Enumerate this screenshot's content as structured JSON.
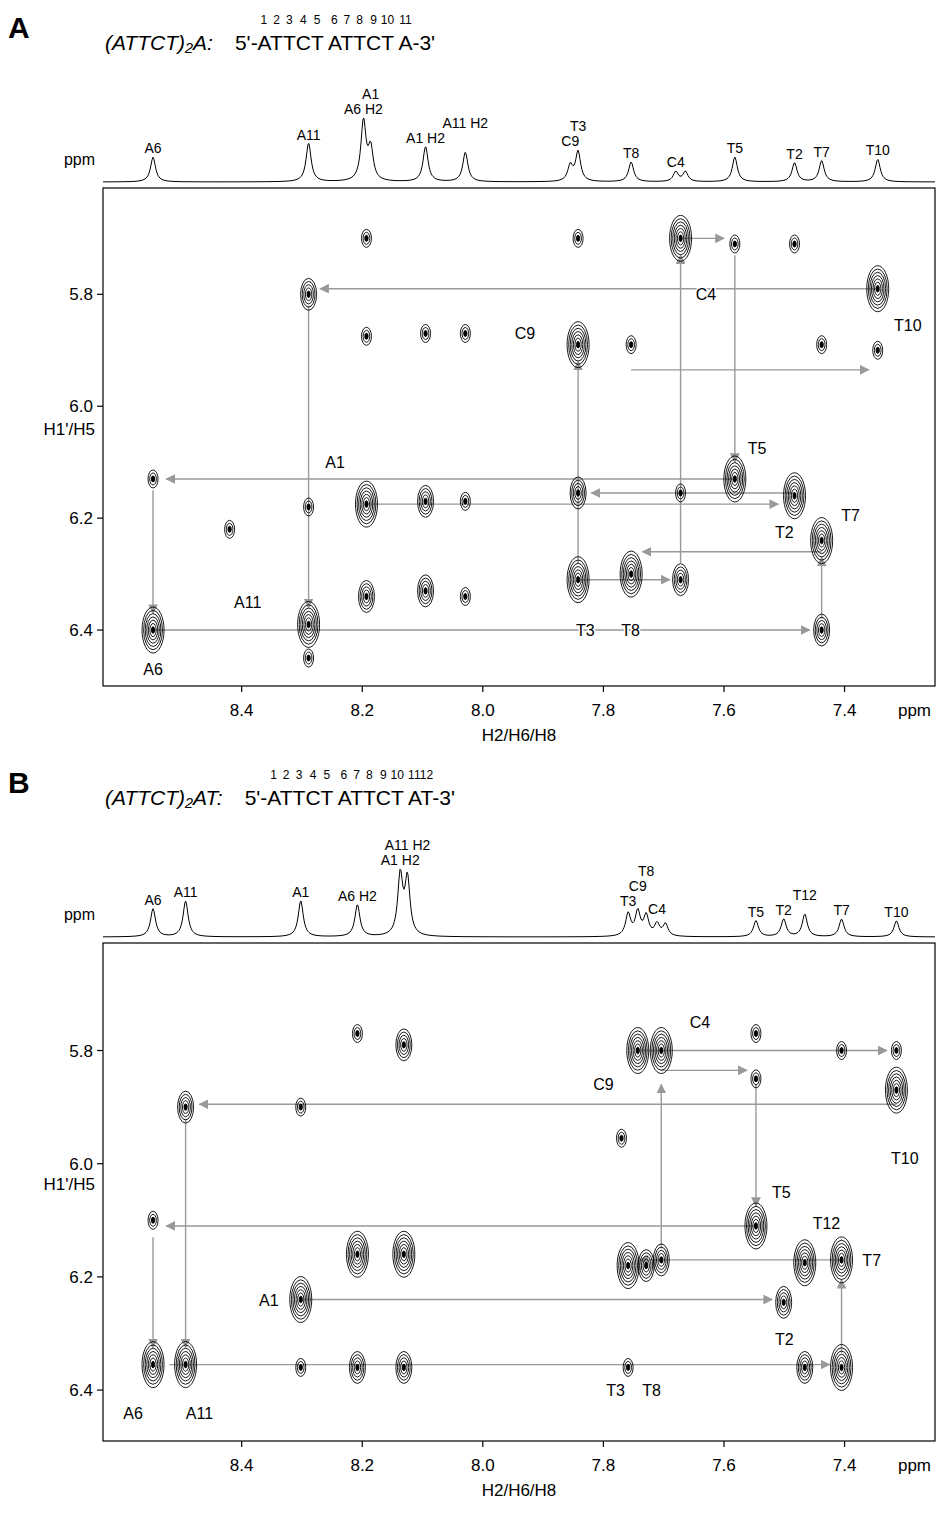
{
  "chart_data": [
    {
      "type": "nmr_2d",
      "panel": "A",
      "title": "(ATTCT)₂A:",
      "sequence": "5'-ATTCT ATTCT A-3'",
      "residue_numbers": [
        1,
        2,
        3,
        4,
        5,
        6,
        7,
        8,
        9,
        10,
        11
      ],
      "x_label": "H2/H6/H8",
      "y_label": "H1'/H5",
      "x_unit": "ppm",
      "y_unit": "ppm",
      "xlim": [
        8.63,
        7.25
      ],
      "ylim": [
        5.61,
        6.5
      ],
      "xticks": [
        8.4,
        8.2,
        {
          "value": 8,
          "label": "8.0"
        },
        7.8,
        7.6,
        7.4
      ],
      "yticks": [
        5.8,
        {
          "value": 6,
          "label": "6.0"
        },
        6.2,
        6.4
      ],
      "spectrum": {
        "x": [
          8.547,
          8.289,
          8.198,
          8.186,
          8.095,
          8.029,
          7.855,
          7.842,
          7.754,
          7.68,
          7.664,
          7.582,
          7.483,
          7.438,
          7.345
        ],
        "height": [
          0.35,
          0.55,
          0.85,
          0.45,
          0.5,
          0.42,
          0.22,
          0.42,
          0.28,
          0.14,
          0.14,
          0.35,
          0.27,
          0.3,
          0.32
        ],
        "labels": [
          "A6",
          "A11",
          "A6 H2",
          "A1",
          "A1 H2",
          "A11 H2",
          "C9",
          "T3",
          "T8",
          "C4",
          null,
          "T5",
          "T2",
          "T7",
          "T10"
        ]
      },
      "peaks": {
        "x": [
          8.547,
          8.547,
          8.289,
          8.289,
          8.289,
          8.289,
          8.42,
          8.193,
          8.193,
          8.193,
          8.193,
          8.095,
          8.095,
          8.095,
          8.029,
          8.029,
          8.029,
          7.842,
          7.842,
          7.842,
          7.842,
          7.754,
          7.754,
          7.672,
          7.672,
          7.672,
          7.582,
          7.582,
          7.483,
          7.483,
          7.438,
          7.438,
          7.438,
          7.345,
          7.345
        ],
        "y": [
          6.13,
          6.4,
          5.8,
          6.18,
          6.39,
          6.45,
          6.22,
          5.7,
          5.875,
          6.175,
          6.34,
          5.87,
          6.17,
          6.33,
          5.87,
          6.17,
          6.34,
          5.7,
          5.89,
          6.155,
          6.31,
          5.89,
          6.3,
          5.7,
          6.155,
          6.31,
          5.71,
          6.13,
          5.71,
          6.16,
          5.89,
          6.24,
          6.4,
          5.79,
          5.9
        ],
        "intensity": [
          1,
          3,
          2,
          1,
          3,
          1,
          1,
          1,
          1,
          3,
          2,
          1,
          2,
          2,
          1,
          1,
          1,
          1,
          3,
          2,
          3,
          1,
          3,
          3,
          1,
          2,
          1,
          3,
          1,
          3,
          1,
          3,
          2,
          3,
          1
        ]
      },
      "annotations": [
        {
          "text": "A6",
          "x": 8.547,
          "y": 6.47
        },
        {
          "text": "A11",
          "x": 8.39,
          "y": 6.35
        },
        {
          "text": "A1",
          "x": 8.245,
          "y": 6.1
        },
        {
          "text": "C9",
          "x": 7.93,
          "y": 5.87
        },
        {
          "text": "T3",
          "x": 7.83,
          "y": 6.4
        },
        {
          "text": "T8",
          "x": 7.755,
          "y": 6.4
        },
        {
          "text": "C4",
          "x": 7.63,
          "y": 5.8
        },
        {
          "text": "T5",
          "x": 7.545,
          "y": 6.075
        },
        {
          "text": "T2",
          "x": 7.5,
          "y": 6.225
        },
        {
          "text": "T7",
          "x": 7.39,
          "y": 6.195
        },
        {
          "text": "T10",
          "x": 7.295,
          "y": 5.855
        }
      ],
      "connections": [
        [
          7.483,
          6.155,
          7.82,
          6.155
        ],
        [
          8.193,
          6.175,
          7.51,
          6.175
        ],
        [
          7.842,
          6.31,
          7.69,
          6.31
        ],
        [
          7.672,
          6.28,
          7.672,
          5.73
        ],
        [
          7.672,
          5.7,
          7.6,
          5.7
        ],
        [
          7.582,
          5.73,
          7.582,
          6.1
        ],
        [
          7.582,
          6.13,
          8.525,
          6.13
        ],
        [
          8.547,
          6.15,
          8.547,
          6.37
        ],
        [
          8.547,
          6.4,
          7.458,
          6.4
        ],
        [
          7.438,
          6.38,
          7.438,
          6.27
        ],
        [
          7.438,
          6.26,
          7.735,
          6.26
        ],
        [
          7.842,
          6.28,
          7.842,
          5.92
        ],
        [
          7.754,
          5.935,
          7.36,
          5.935
        ],
        [
          7.345,
          5.79,
          8.27,
          5.79
        ],
        [
          8.289,
          5.82,
          8.289,
          6.36
        ]
      ]
    },
    {
      "type": "nmr_2d",
      "panel": "B",
      "title": "(ATTCT)₂AT:",
      "sequence": "5'-ATTCT ATTCT AT-3'",
      "residue_numbers": [
        1,
        2,
        3,
        4,
        5,
        6,
        7,
        8,
        9,
        10,
        11,
        12
      ],
      "x_label": "H2/H6/H8",
      "y_label": "H1'/H5",
      "x_unit": "ppm",
      "y_unit": "ppm",
      "xlim": [
        8.63,
        7.25
      ],
      "ylim": [
        5.61,
        6.49
      ],
      "xticks": [
        8.4,
        8.2,
        {
          "value": 8,
          "label": "8.0"
        },
        7.8,
        7.6,
        7.4
      ],
      "yticks": [
        5.8,
        {
          "value": 6,
          "label": "6.0"
        },
        6.2,
        6.4
      ],
      "spectrum": {
        "x": [
          8.547,
          8.493,
          8.302,
          8.208,
          8.137,
          8.125,
          7.759,
          7.743,
          7.729,
          7.711,
          7.697,
          7.547,
          7.501,
          7.466,
          7.405,
          7.314
        ],
        "height": [
          0.35,
          0.45,
          0.45,
          0.4,
          0.75,
          0.7,
          0.28,
          0.3,
          0.25,
          0.15,
          0.15,
          0.2,
          0.22,
          0.28,
          0.22,
          0.2
        ],
        "labels": [
          "A6",
          "A11",
          "A1",
          "A6 H2",
          "A1 H2",
          "A11 H2",
          "T3",
          "C9",
          "T8",
          "C4",
          null,
          "T5",
          "T2",
          "T12",
          "T7",
          "T10"
        ]
      },
      "peaks": {
        "x": [
          8.547,
          8.547,
          8.493,
          8.493,
          8.302,
          8.302,
          8.302,
          8.208,
          8.208,
          8.208,
          8.131,
          8.131,
          8.131,
          7.743,
          7.704,
          7.759,
          7.729,
          7.759,
          7.77,
          7.704,
          7.547,
          7.547,
          7.547,
          7.501,
          7.466,
          7.466,
          7.405,
          7.405,
          7.405,
          7.314,
          7.314
        ],
        "y": [
          6.1,
          6.355,
          5.9,
          6.355,
          5.9,
          6.24,
          6.36,
          5.77,
          6.16,
          6.36,
          5.79,
          6.16,
          6.36,
          5.8,
          5.8,
          6.18,
          6.18,
          6.36,
          5.955,
          6.17,
          5.77,
          5.85,
          6.11,
          6.245,
          6.175,
          6.36,
          5.8,
          6.17,
          6.36,
          5.8,
          5.87
        ],
        "intensity": [
          1,
          3,
          2,
          3,
          1,
          3,
          1,
          1,
          3,
          2,
          2,
          3,
          2,
          3,
          3,
          3,
          2,
          1,
          1,
          2,
          1,
          1,
          3,
          2,
          3,
          2,
          1,
          3,
          3,
          1,
          3
        ]
      },
      "annotations": [
        {
          "text": "C9",
          "x": 7.8,
          "y": 5.86
        },
        {
          "text": "C4",
          "x": 7.64,
          "y": 5.75
        },
        {
          "text": "T10",
          "x": 7.3,
          "y": 5.99
        },
        {
          "text": "T5",
          "x": 7.505,
          "y": 6.05
        },
        {
          "text": "T12",
          "x": 7.43,
          "y": 6.105
        },
        {
          "text": "T7",
          "x": 7.355,
          "y": 6.17
        },
        {
          "text": "T2",
          "x": 7.5,
          "y": 6.31
        },
        {
          "text": "A1",
          "x": 8.355,
          "y": 6.24
        },
        {
          "text": "T3",
          "x": 7.78,
          "y": 6.4
        },
        {
          "text": "T8",
          "x": 7.72,
          "y": 6.4
        },
        {
          "text": "A6",
          "x": 8.58,
          "y": 6.44
        },
        {
          "text": "A11",
          "x": 8.47,
          "y": 6.44
        }
      ],
      "connections": [
        [
          7.743,
          5.8,
          7.33,
          5.8
        ],
        [
          7.704,
          5.835,
          7.562,
          5.835
        ],
        [
          7.547,
          5.86,
          7.547,
          6.075
        ],
        [
          7.547,
          6.11,
          8.525,
          6.11
        ],
        [
          8.547,
          6.13,
          8.547,
          6.325
        ],
        [
          7.314,
          5.895,
          8.47,
          5.895
        ],
        [
          8.493,
          5.92,
          8.493,
          6.325
        ],
        [
          8.52,
          6.355,
          7.425,
          6.355
        ],
        [
          7.405,
          6.335,
          7.405,
          6.205
        ],
        [
          7.405,
          6.17,
          7.74,
          6.17
        ],
        [
          8.302,
          6.24,
          7.52,
          6.24
        ],
        [
          7.704,
          6.15,
          7.704,
          5.86
        ]
      ]
    }
  ]
}
